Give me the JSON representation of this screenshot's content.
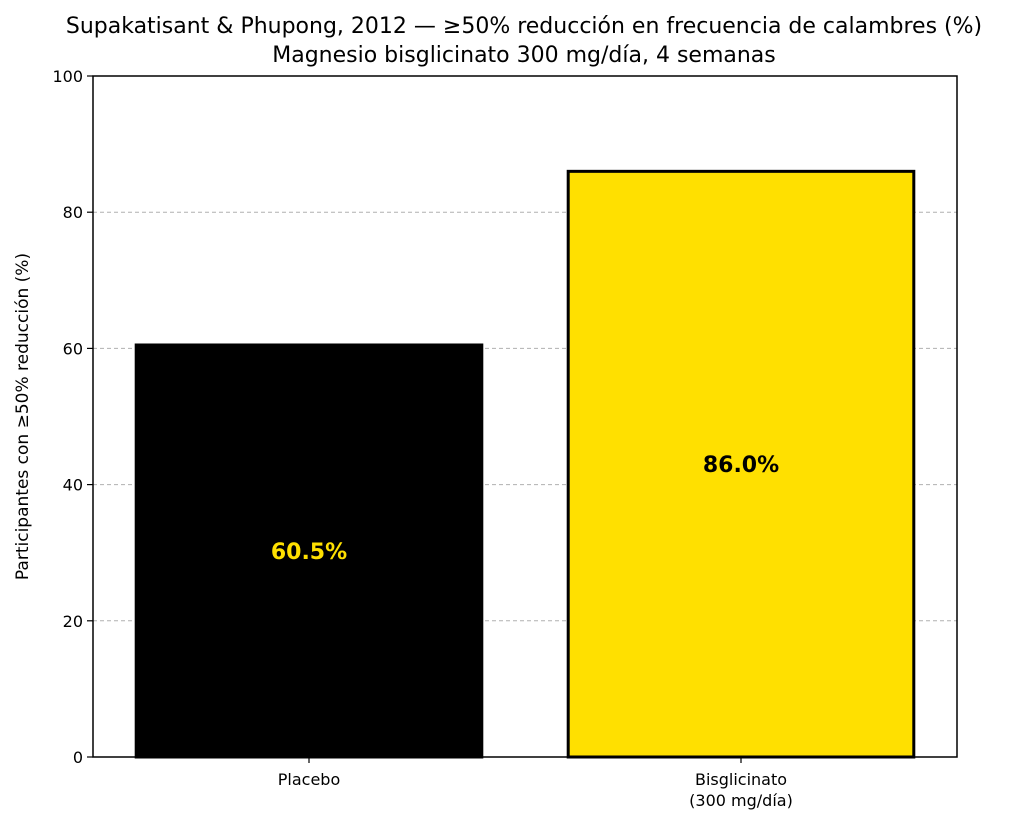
{
  "chart_data": {
    "type": "bar",
    "title": "Supakatisant & Phupong, 2012 — ≥50% reducción en frecuencia de calambres (%)",
    "subtitle": "Magnesio bisglicinato 300 mg/día, 4 semanas",
    "xlabel": "",
    "ylabel": "Participantes con ≥50% reducción (%)",
    "ylim": [
      0,
      100
    ],
    "yticks": [
      0,
      20,
      40,
      60,
      80,
      100
    ],
    "grid": "y-dashed",
    "categories": [
      [
        "Placebo"
      ],
      [
        "Bisglicinato",
        "(300 mg/día)"
      ]
    ],
    "values": [
      60.5,
      86.0
    ],
    "data_labels": [
      "60.5%",
      "86.0%"
    ],
    "colors": [
      "#000000",
      "#FFE000"
    ],
    "label_colors": [
      "#FFE000",
      "#000000"
    ]
  }
}
